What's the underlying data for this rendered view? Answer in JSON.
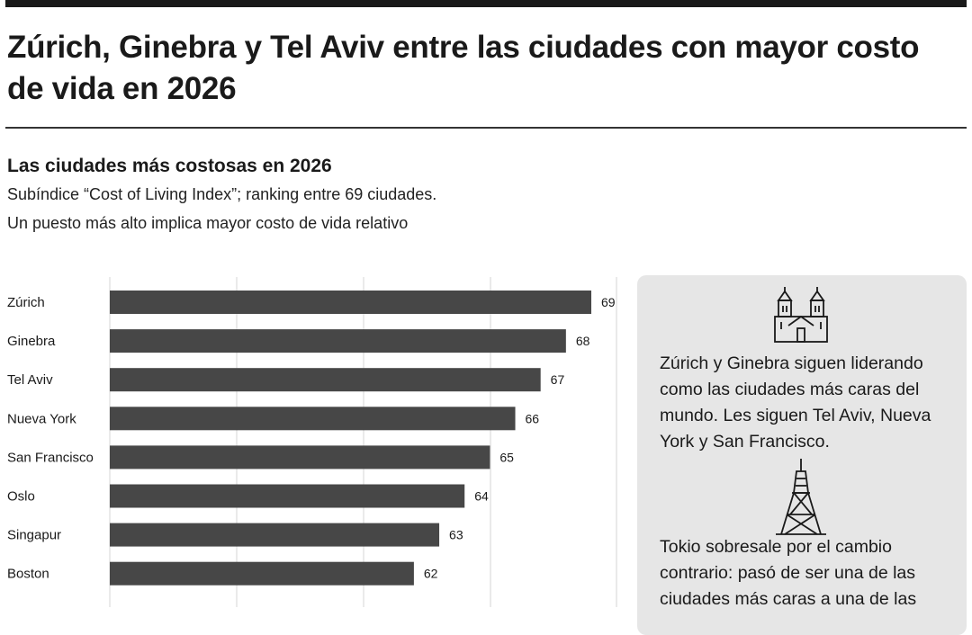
{
  "headline": "Zúrich, Ginebra y Tel Aviv entre las ciudades con mayor costo de vida en 2026",
  "subtitle": "Las ciudades más costosas en 2026",
  "note_line1": "Subíndice “Cost of Living Index”; ranking entre 69 ciudades.",
  "note_line2": "Un puesto más alto implica mayor costo de vida relativo",
  "chart_data": {
    "type": "bar",
    "orientation": "horizontal",
    "title": "Las ciudades más costosas en 2026",
    "categories": [
      "Zúrich",
      "Ginebra",
      "Tel Aviv",
      "Nueva York",
      "San Francisco",
      "Oslo",
      "Singapur",
      "Boston"
    ],
    "values": [
      69,
      68,
      67,
      66,
      65,
      64,
      63,
      62
    ],
    "xlim": [
      50,
      69
    ],
    "grid": true,
    "bar_color": "#474747"
  },
  "side_panel": {
    "text1": "Zúrich y Ginebra siguen liderando como las ciudades más caras del mundo. Les siguen Tel Aviv, Nueva York y San Francisco.",
    "text2": "Tokio sobresale por el cambio contrario: pasó de ser una de las ciudades más caras a una de las",
    "icon1": "cathedral-icon",
    "icon2": "tokyo-tower-icon"
  }
}
